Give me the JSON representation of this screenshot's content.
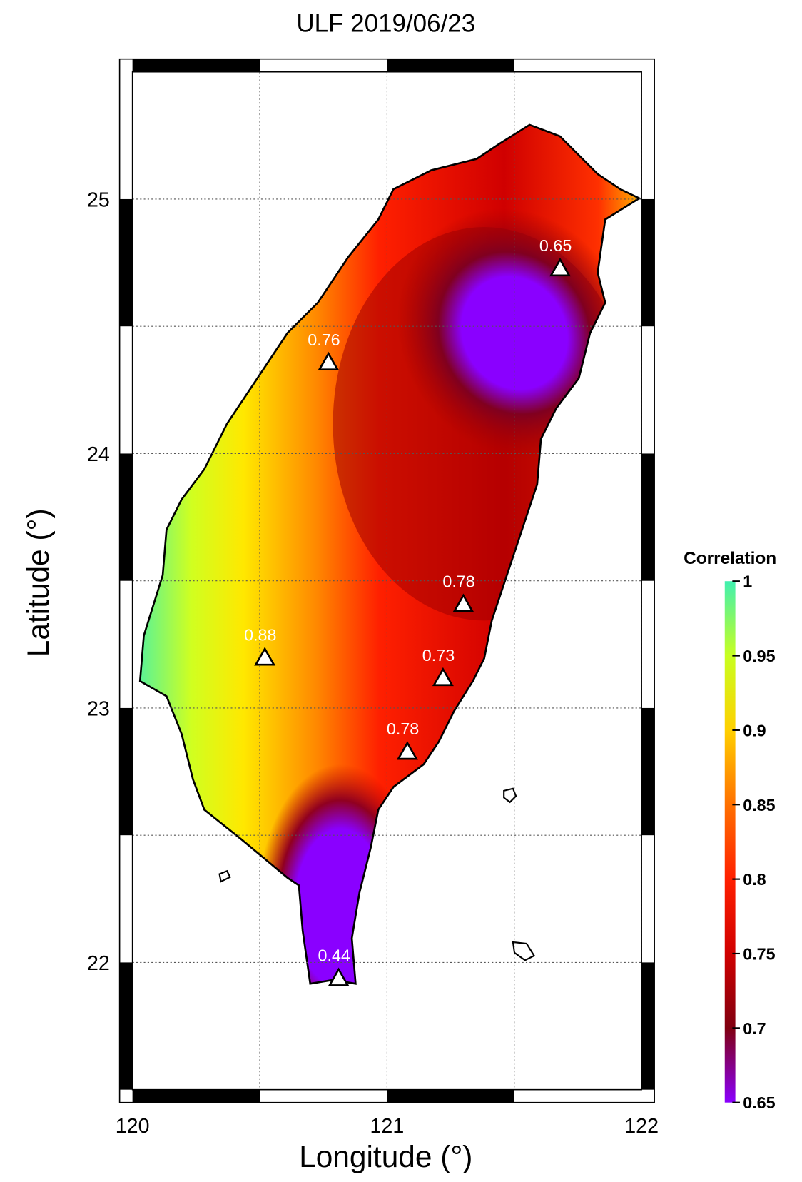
{
  "chart_data": {
    "type": "station-map",
    "title": "ULF 2019/06/23",
    "x_label": "Longitude (°)",
    "y_label": "Latitude (°)",
    "xlim": [
      120,
      122
    ],
    "ylim": [
      21.5,
      25.5
    ],
    "xticks": [
      120,
      121,
      122
    ],
    "yticks": [
      22,
      23,
      24,
      25
    ],
    "xminorticks": [
      120.5,
      121.5
    ],
    "yminorticks": [
      22.5,
      23.5,
      24.5
    ],
    "grid": true,
    "stations": {
      "lon": [
        121.68,
        120.77,
        121.3,
        120.52,
        121.22,
        121.08,
        120.81
      ],
      "lat": [
        24.73,
        24.36,
        23.41,
        23.2,
        23.12,
        22.83,
        21.94
      ],
      "values": [
        0.65,
        0.76,
        0.78,
        0.88,
        0.73,
        0.78,
        0.44
      ]
    },
    "colorbar": {
      "label": "Correlation",
      "lim": [
        0.65,
        1
      ],
      "ticks": [
        0.65,
        0.7,
        0.75,
        0.8,
        0.85,
        0.9,
        0.95,
        1
      ],
      "colors": [
        "#8a00ff",
        "#800010",
        "#d00000",
        "#ff2000",
        "#ff7000",
        "#ffd000",
        "#c8ff20",
        "#40f0b0"
      ]
    }
  }
}
